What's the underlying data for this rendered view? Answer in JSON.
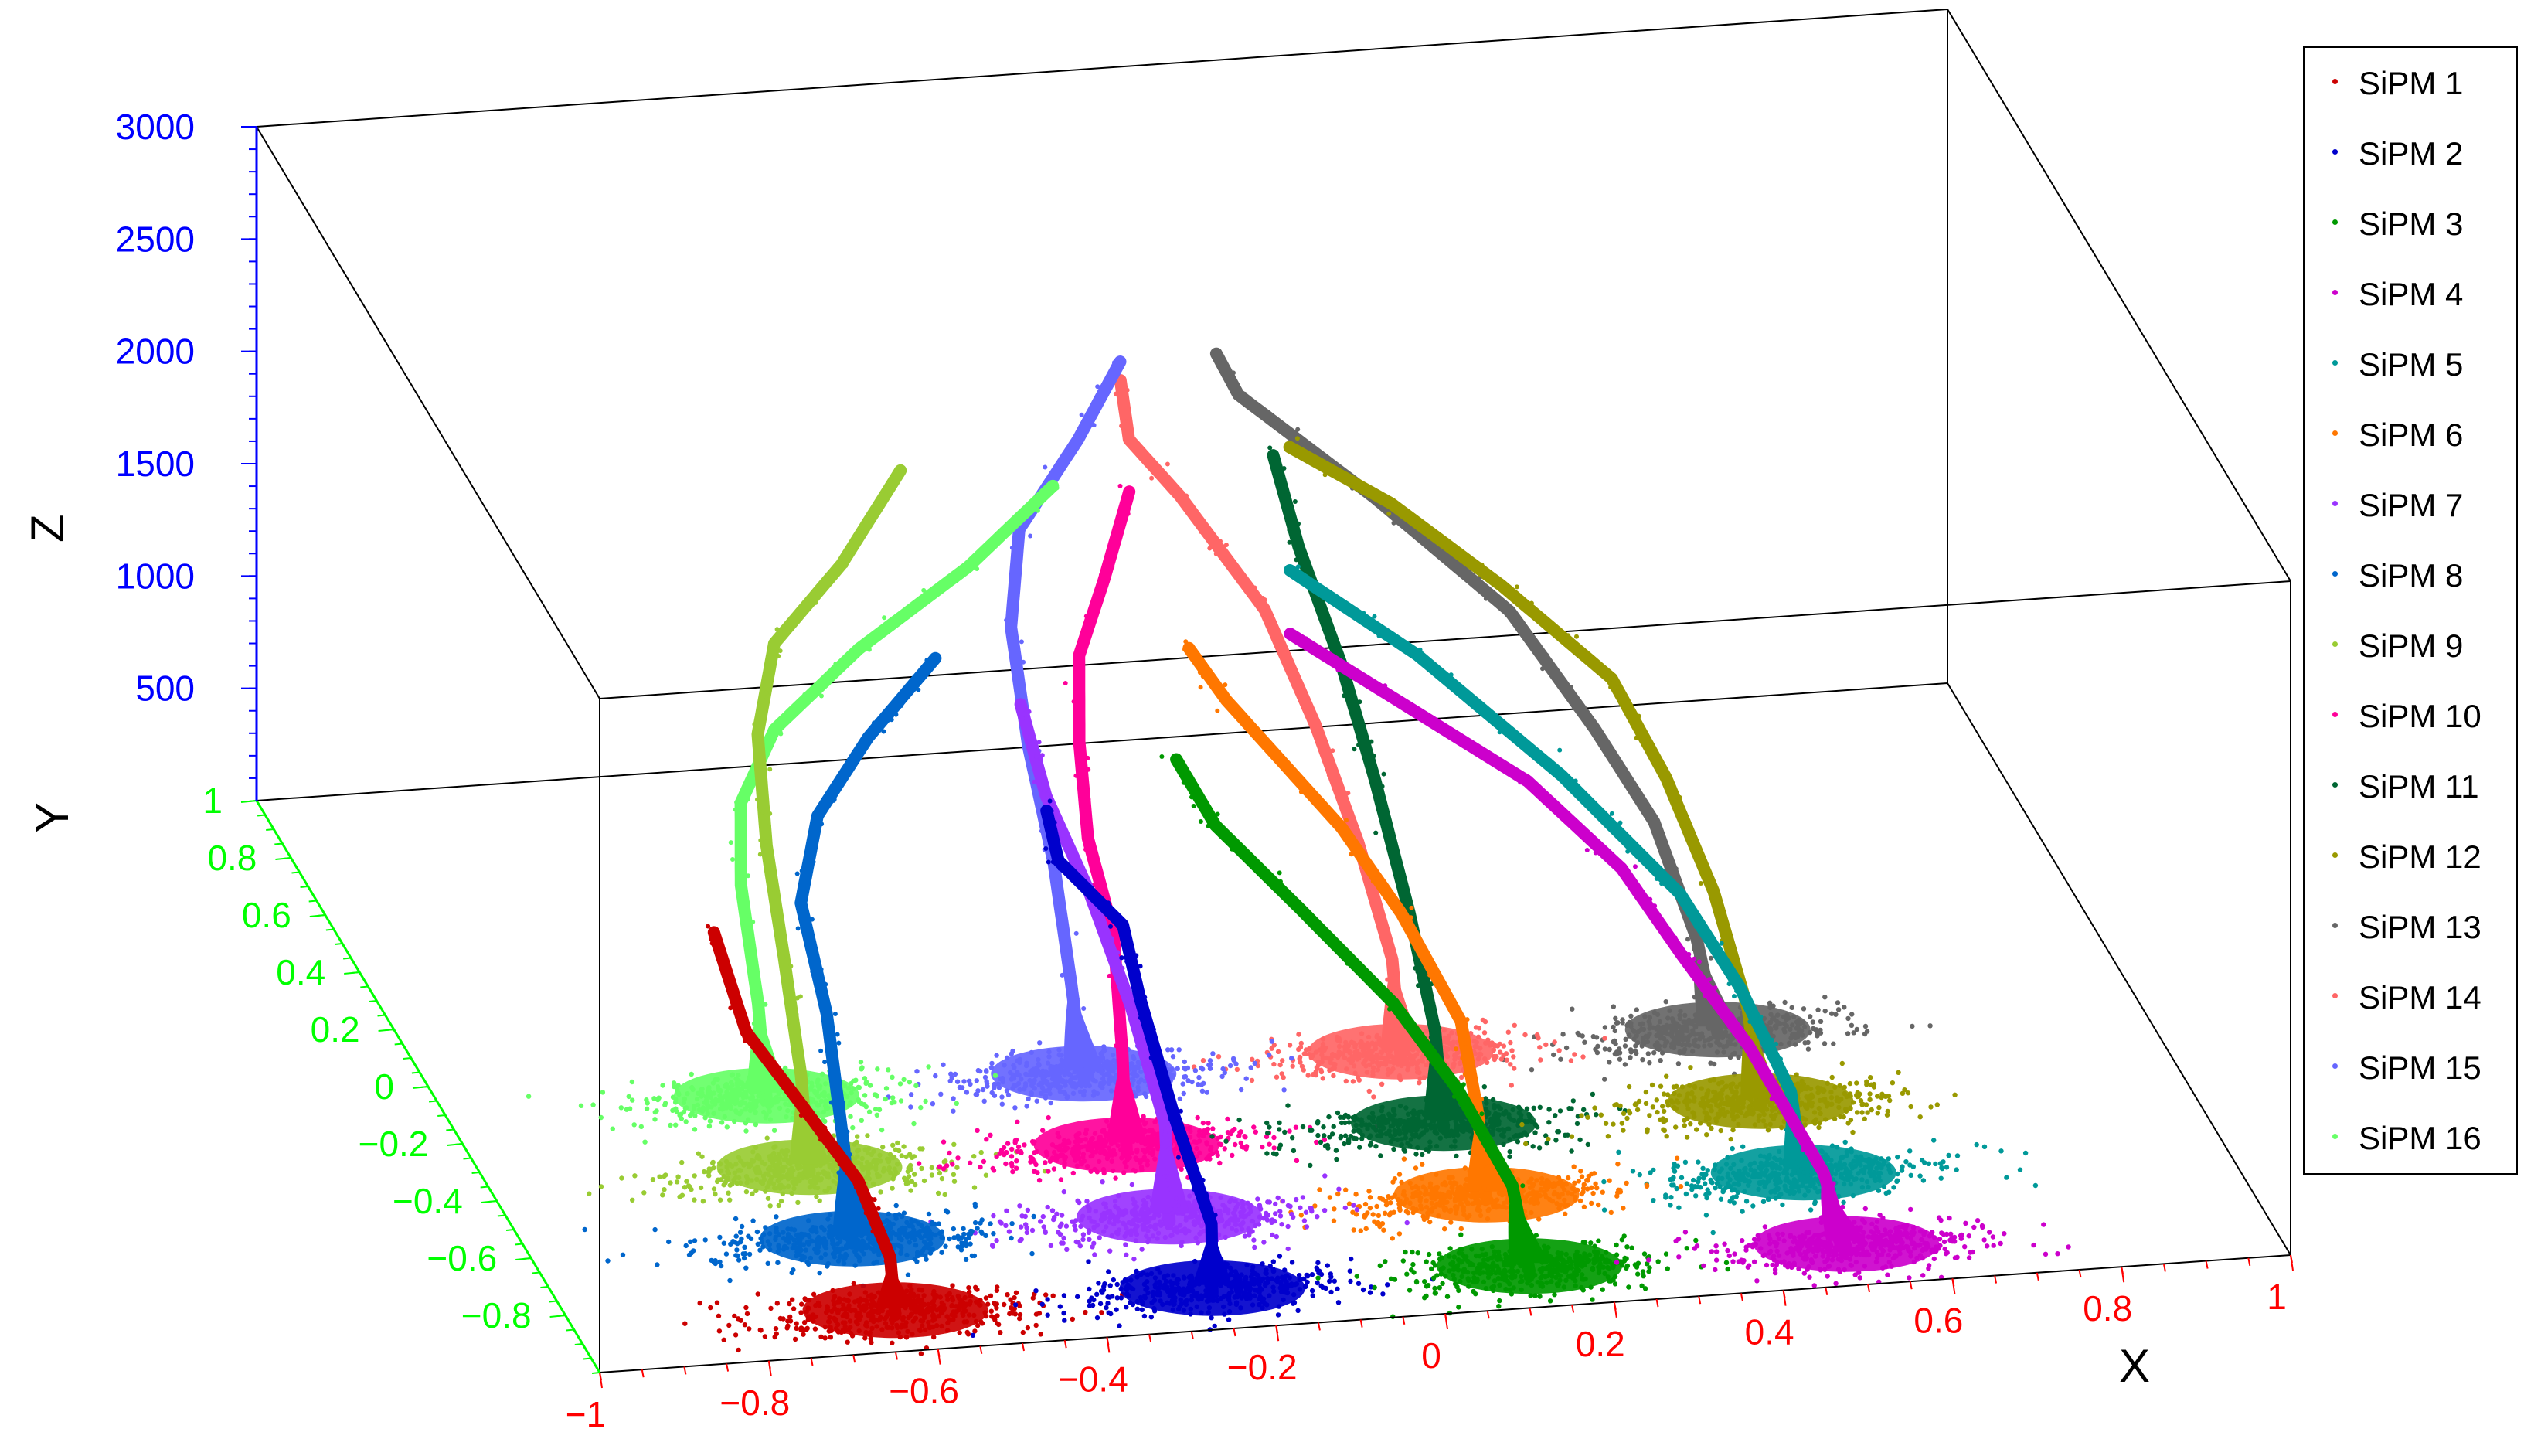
{
  "chart_data": {
    "type": "scatter",
    "dimensions": 3,
    "xlabel": "X",
    "ylabel": "Y",
    "zlabel": "Z",
    "xlim": [
      -1,
      1
    ],
    "ylim": [
      -1,
      1
    ],
    "zlim": [
      0,
      3000
    ],
    "x_ticks": [
      "−1",
      "−0.8",
      "−0.6",
      "−0.4",
      "−0.2",
      "0",
      "0.2",
      "0.4",
      "0.6",
      "0.8",
      "1"
    ],
    "y_ticks": [
      "−0.8",
      "−0.6",
      "−0.4",
      "−0.2",
      "0",
      "0.2",
      "0.4",
      "0.6",
      "0.8",
      "1"
    ],
    "z_ticks": [
      "500",
      "1000",
      "1500",
      "2000",
      "2500",
      "3000"
    ],
    "axis_colors": {
      "x": "#ff0000",
      "y": "#00ff00",
      "z": "#0000ff"
    },
    "legend_position": "right",
    "series": [
      {
        "name": "SiPM 1",
        "color": "#cc0000",
        "cluster": [
          -0.625,
          -0.875
        ],
        "path": [
          [
            -0.625,
            -0.875,
            0
          ],
          [
            -0.63,
            -0.87,
            250
          ],
          [
            -0.66,
            -0.83,
            550
          ],
          [
            -0.72,
            -0.76,
            850
          ],
          [
            -0.77,
            -0.72,
            1100
          ],
          [
            -0.8,
            -0.68,
            1500
          ]
        ]
      },
      {
        "name": "SiPM 2",
        "color": "#0000cc",
        "cluster": [
          -0.25,
          -0.875
        ],
        "path": [
          [
            -0.25,
            -0.875,
            0
          ],
          [
            -0.25,
            -0.87,
            300
          ],
          [
            -0.28,
            -0.8,
            700
          ],
          [
            -0.3,
            -0.7,
            1100
          ],
          [
            -0.3,
            -0.6,
            1300
          ],
          [
            -0.36,
            -0.52,
            1500
          ],
          [
            -0.37,
            -0.5,
            1700
          ]
        ]
      },
      {
        "name": "SiPM 3",
        "color": "#009900",
        "cluster": [
          0.125,
          -0.875
        ],
        "path": [
          [
            0.125,
            -0.875,
            0
          ],
          [
            0.11,
            -0.85,
            350
          ],
          [
            0.06,
            -0.78,
            700
          ],
          [
            0.0,
            -0.7,
            1000
          ],
          [
            -0.08,
            -0.55,
            1250
          ],
          [
            -0.15,
            -0.4,
            1450
          ],
          [
            -0.18,
            -0.32,
            1650
          ]
        ]
      },
      {
        "name": "SiPM 4",
        "color": "#cc00cc",
        "cluster": [
          0.5,
          -0.875
        ],
        "path": [
          [
            0.5,
            -0.875,
            0
          ],
          [
            0.48,
            -0.84,
            300
          ],
          [
            0.42,
            -0.7,
            700
          ],
          [
            0.36,
            -0.6,
            1000
          ],
          [
            0.32,
            -0.45,
            1200
          ],
          [
            0.25,
            -0.25,
            1350
          ],
          [
            0.05,
            0.15,
            1550
          ]
        ]
      },
      {
        "name": "SiPM 5",
        "color": "#009999",
        "cluster": [
          0.5,
          -0.625
        ],
        "path": [
          [
            0.5,
            -0.625,
            0
          ],
          [
            0.49,
            -0.6,
            350
          ],
          [
            0.45,
            -0.5,
            700
          ],
          [
            0.4,
            -0.4,
            1000
          ],
          [
            0.3,
            -0.2,
            1300
          ],
          [
            0.18,
            0.05,
            1550
          ],
          [
            0.07,
            0.25,
            1700
          ]
        ]
      },
      {
        "name": "SiPM 6",
        "color": "#ff7700",
        "cluster": [
          0.125,
          -0.625
        ],
        "path": [
          [
            0.125,
            -0.625,
            0
          ],
          [
            0.12,
            -0.6,
            350
          ],
          [
            0.11,
            -0.55,
            700
          ],
          [
            0.07,
            -0.4,
            1000
          ],
          [
            0.03,
            -0.25,
            1200
          ],
          [
            -0.06,
            -0.02,
            1500
          ],
          [
            -0.09,
            0.05,
            1650
          ]
        ]
      },
      {
        "name": "SiPM 7",
        "color": "#9933ff",
        "cluster": [
          -0.25,
          -0.625
        ],
        "path": [
          [
            -0.25,
            -0.625,
            0
          ],
          [
            -0.25,
            -0.6,
            400
          ],
          [
            -0.27,
            -0.5,
            800
          ],
          [
            -0.3,
            -0.4,
            1200
          ],
          [
            -0.33,
            -0.3,
            1500
          ],
          [
            -0.35,
            -0.25,
            1850
          ]
        ]
      },
      {
        "name": "SiPM 8",
        "color": "#0066cc",
        "cluster": [
          -0.625,
          -0.625
        ],
        "path": [
          [
            -0.625,
            -0.625,
            0
          ],
          [
            -0.63,
            -0.6,
            400
          ],
          [
            -0.62,
            -0.45,
            800
          ],
          [
            -0.62,
            -0.3,
            1100
          ],
          [
            -0.58,
            -0.2,
            1350
          ],
          [
            -0.5,
            -0.1,
            1550
          ],
          [
            -0.4,
            0.0,
            1750
          ]
        ]
      },
      {
        "name": "SiPM 9",
        "color": "#99cc33",
        "cluster": [
          -0.625,
          -0.375
        ],
        "path": [
          [
            -0.625,
            -0.375,
            0
          ],
          [
            -0.63,
            -0.35,
            400
          ],
          [
            -0.63,
            -0.25,
            800
          ],
          [
            -0.62,
            -0.1,
            1100
          ],
          [
            -0.6,
            0.05,
            1400
          ],
          [
            -0.55,
            0.2,
            1600
          ],
          [
            -0.45,
            0.3,
            1800
          ],
          [
            -0.35,
            0.45,
            2000
          ]
        ]
      },
      {
        "name": "SiPM 10",
        "color": "#ff0099",
        "cluster": [
          -0.25,
          -0.375
        ],
        "path": [
          [
            -0.25,
            -0.375,
            0
          ],
          [
            -0.25,
            -0.35,
            400
          ],
          [
            -0.24,
            -0.25,
            800
          ],
          [
            -0.25,
            -0.15,
            1100
          ],
          [
            -0.24,
            -0.05,
            1400
          ],
          [
            -0.22,
            0.05,
            1650
          ],
          [
            -0.17,
            0.15,
            1850
          ],
          [
            -0.12,
            0.25,
            2100
          ]
        ]
      },
      {
        "name": "SiPM 11",
        "color": "#006633",
        "cluster": [
          0.125,
          -0.375
        ],
        "path": [
          [
            0.125,
            -0.375,
            0
          ],
          [
            0.12,
            -0.35,
            400
          ],
          [
            0.11,
            -0.25,
            800
          ],
          [
            0.1,
            -0.1,
            1200
          ],
          [
            0.08,
            0.0,
            1600
          ],
          [
            0.05,
            0.1,
            2000
          ],
          [
            0.03,
            0.15,
            2350
          ]
        ]
      },
      {
        "name": "SiPM 12",
        "color": "#999900",
        "cluster": [
          0.5,
          -0.375
        ],
        "path": [
          [
            0.5,
            -0.375,
            0
          ],
          [
            0.49,
            -0.35,
            400
          ],
          [
            0.47,
            -0.25,
            800
          ],
          [
            0.44,
            -0.12,
            1150
          ],
          [
            0.4,
            0.0,
            1450
          ],
          [
            0.3,
            0.15,
            1700
          ],
          [
            0.2,
            0.3,
            1900
          ],
          [
            0.1,
            0.4,
            2050
          ]
        ]
      },
      {
        "name": "SiPM 13",
        "color": "#666666",
        "cluster": [
          0.5,
          -0.125
        ],
        "path": [
          [
            0.5,
            -0.125,
            0
          ],
          [
            0.48,
            -0.1,
            400
          ],
          [
            0.45,
            0.0,
            800
          ],
          [
            0.4,
            0.1,
            1100
          ],
          [
            0.33,
            0.25,
            1450
          ],
          [
            0.2,
            0.4,
            1800
          ],
          [
            0.07,
            0.55,
            2100
          ],
          [
            0.05,
            0.58,
            2250
          ]
        ]
      },
      {
        "name": "SiPM 14",
        "color": "#ff6666",
        "cluster": [
          0.125,
          -0.125
        ],
        "path": [
          [
            0.125,
            -0.125,
            0
          ],
          [
            0.12,
            -0.1,
            400
          ],
          [
            0.1,
            0.0,
            800
          ],
          [
            0.07,
            0.1,
            1200
          ],
          [
            0.03,
            0.2,
            1600
          ],
          [
            -0.05,
            0.3,
            2000
          ],
          [
            -0.1,
            0.35,
            2200
          ],
          [
            -0.1,
            0.4,
            2400
          ]
        ]
      },
      {
        "name": "SiPM 15",
        "color": "#6666ff",
        "cluster": [
          -0.25,
          -0.125
        ],
        "path": [
          [
            -0.25,
            -0.125,
            0
          ],
          [
            -0.26,
            -0.1,
            400
          ],
          [
            -0.26,
            0.0,
            800
          ],
          [
            -0.27,
            0.1,
            1200
          ],
          [
            -0.27,
            0.2,
            1600
          ],
          [
            -0.24,
            0.3,
            1900
          ],
          [
            -0.15,
            0.4,
            2150
          ],
          [
            -0.08,
            0.5,
            2350
          ]
        ]
      },
      {
        "name": "SiPM 16",
        "color": "#66ff66",
        "cluster": [
          -0.625,
          -0.125
        ],
        "path": [
          [
            -0.625,
            -0.125,
            0
          ],
          [
            -0.63,
            -0.1,
            400
          ],
          [
            -0.63,
            0.0,
            800
          ],
          [
            -0.62,
            0.05,
            1100
          ],
          [
            -0.57,
            0.1,
            1350
          ],
          [
            -0.45,
            0.2,
            1550
          ],
          [
            -0.3,
            0.3,
            1750
          ],
          [
            -0.18,
            0.4,
            1950
          ]
        ]
      }
    ]
  }
}
